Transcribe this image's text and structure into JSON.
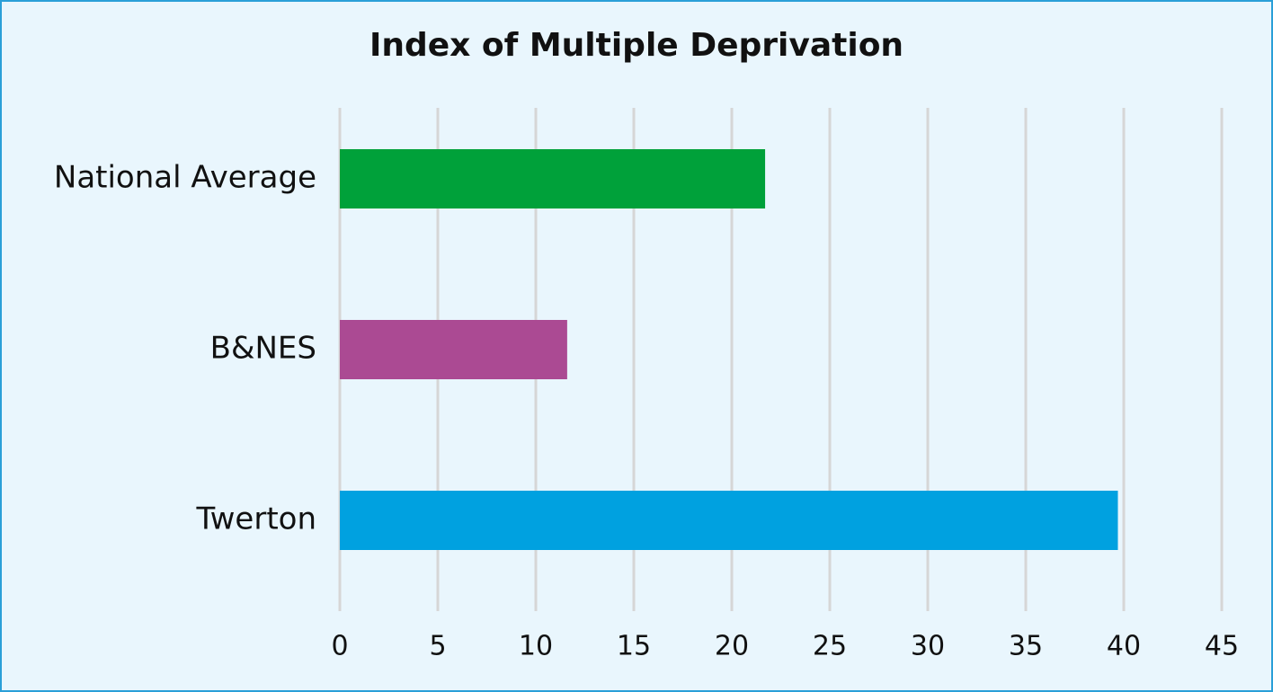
{
  "chart_data": {
    "type": "bar",
    "orientation": "horizontal",
    "title": "Index of Multiple Deprivation",
    "categories": [
      "National Average",
      "B&NES",
      "Twerton"
    ],
    "values": [
      21.7,
      11.6,
      39.7
    ],
    "colors": [
      "#00a13a",
      "#ab4a93",
      "#00a1e0"
    ],
    "xlim": [
      0,
      45
    ],
    "xticks": [
      0,
      5,
      10,
      15,
      20,
      25,
      30,
      35,
      40,
      45
    ],
    "grid": true
  }
}
